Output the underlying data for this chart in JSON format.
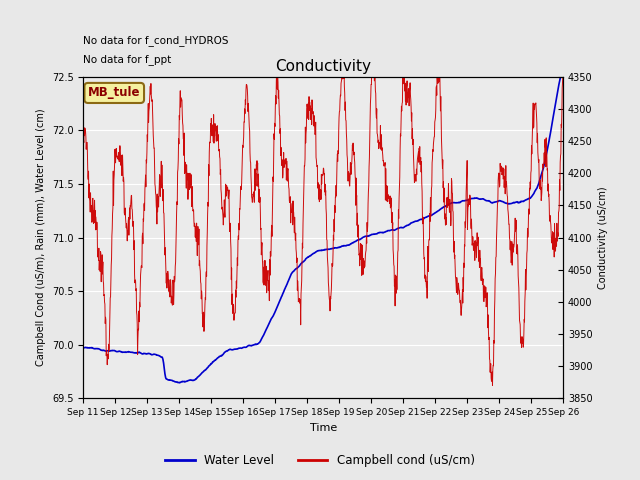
{
  "title": "Conductivity",
  "xlabel": "Time",
  "ylabel_left": "Campbell Cond (uS/m), Rain (mm), Water Level (cm)",
  "ylabel_right": "Conductivity (uS/cm)",
  "ylim_left": [
    69.5,
    72.5
  ],
  "ylim_right": [
    3850,
    4350
  ],
  "fig_facecolor": "#e8e8e8",
  "plot_bg_color": "#ebebeb",
  "grid_color": "#ffffff",
  "no_data_text": [
    "No data for f_cond_HYDROS",
    "No data for f_ppt"
  ],
  "station_label": "MB_tule",
  "legend_entries": [
    "Water Level",
    "Campbell cond (uS/cm)"
  ],
  "water_level_color": "#0000cc",
  "campbell_cond_color": "#cc0000",
  "x_tick_labels": [
    "Sep 11",
    "Sep 12",
    "Sep 13",
    "Sep 14",
    "Sep 15",
    "Sep 16",
    "Sep 17",
    "Sep 18",
    "Sep 19",
    "Sep 20",
    "Sep 21",
    "Sep 22",
    "Sep 23",
    "Sep 24",
    "Sep 25",
    "Sep 26"
  ],
  "yticks_left": [
    69.5,
    70.0,
    70.5,
    71.0,
    71.5,
    72.0,
    72.5
  ],
  "yticks_right": [
    3850,
    3900,
    3950,
    4000,
    4050,
    4100,
    4150,
    4200,
    4250,
    4300,
    4350
  ]
}
